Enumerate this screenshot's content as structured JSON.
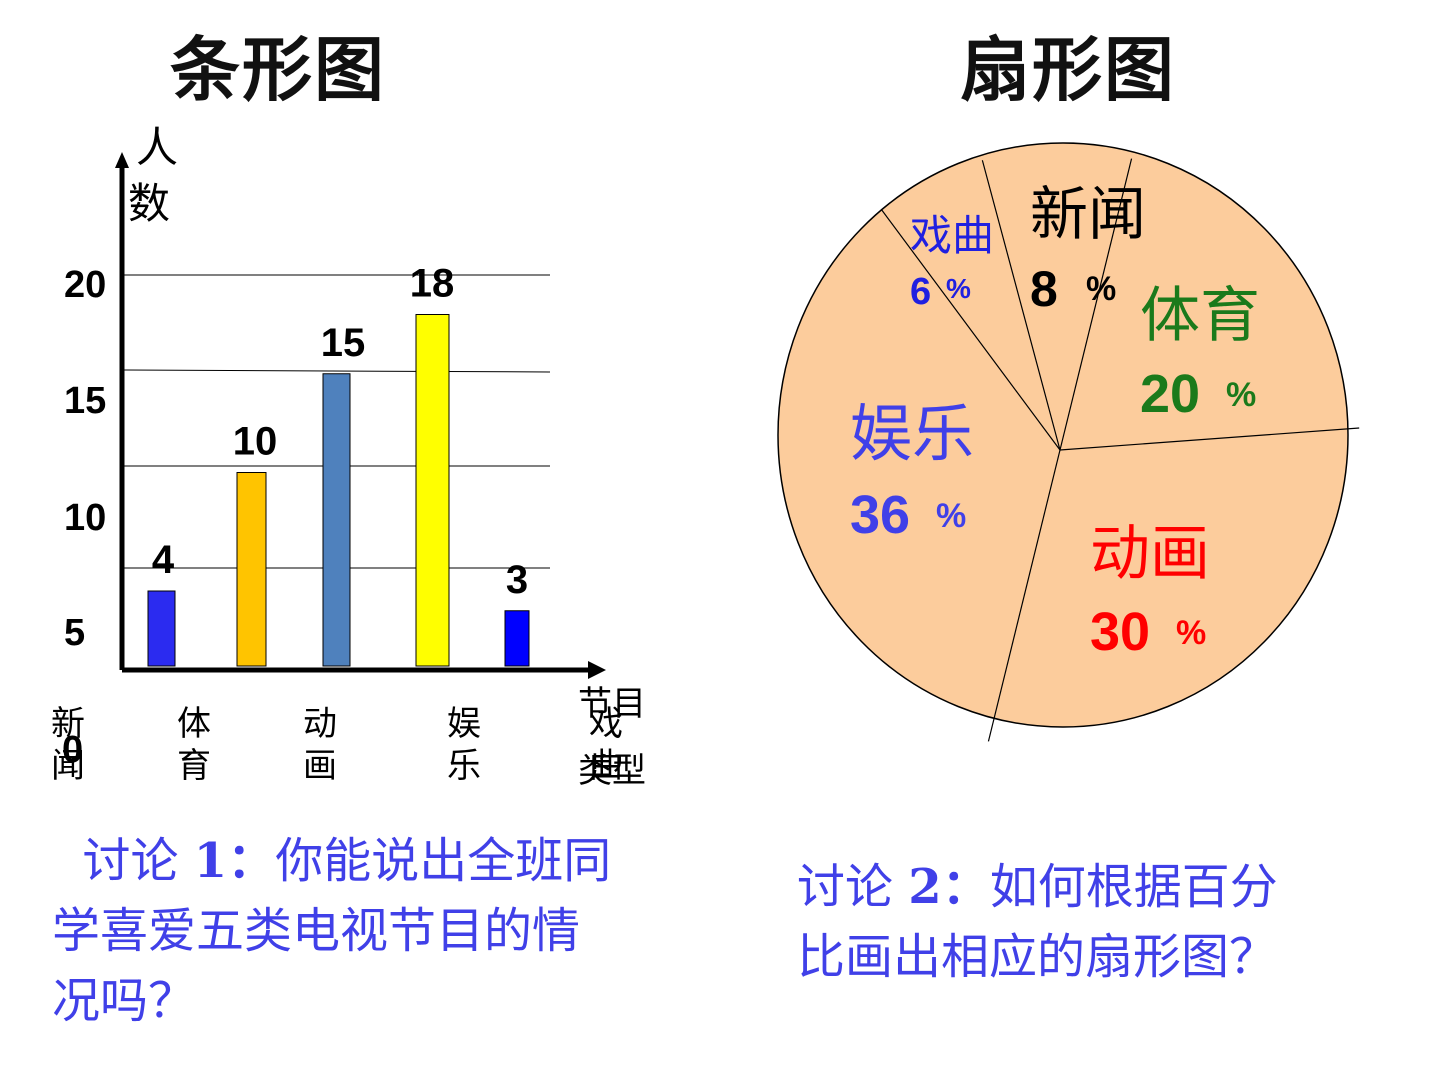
{
  "colors": {
    "text_blue": "#4040e8",
    "axis": "#000000",
    "grid": "#000000",
    "pie_fill": "#fccc9c",
    "pie_stroke": "#000000"
  },
  "titles": {
    "bar": "条形图",
    "pie": "扇形图"
  },
  "chart_data": [
    {
      "type": "bar",
      "title": "条形图",
      "ylabel_chars": [
        "人",
        "数"
      ],
      "xlabel_lines": [
        "节目",
        "类型"
      ],
      "y_tick_labels": [
        "5",
        "10",
        "15",
        "20"
      ],
      "zero_label": "0",
      "ylim": [
        0,
        20
      ],
      "grid": true,
      "categories": [
        "新闻",
        "体育",
        "动画",
        "娱乐",
        "戏曲"
      ],
      "category_chars": [
        [
          "新",
          "闻"
        ],
        [
          "体",
          "育"
        ],
        [
          "动",
          "画"
        ],
        [
          "娱",
          "乐"
        ],
        [
          "戏",
          "曲"
        ]
      ],
      "values": [
        4,
        10,
        15,
        18,
        3
      ],
      "value_labels": [
        "4",
        "10",
        "15",
        "18",
        "3"
      ],
      "bar_colors": [
        "#2b2bf0",
        "#ffc400",
        "#4f81bd",
        "#ffff00",
        "#0000ff"
      ]
    },
    {
      "type": "pie",
      "title": "扇形图",
      "slices": [
        {
          "label": "新闻",
          "value": 8,
          "pct_text": "8",
          "pct_sign": "%",
          "color": "#000000"
        },
        {
          "label": "体育",
          "value": 20,
          "pct_text": "20",
          "pct_sign": "%",
          "color": "#1b7a1b"
        },
        {
          "label": "动画",
          "value": 30,
          "pct_text": "30",
          "pct_sign": "%",
          "color": "#ff0000"
        },
        {
          "label": "娱乐",
          "value": 36,
          "pct_text": "36",
          "pct_sign": "%",
          "color": "#4040e8"
        },
        {
          "label": "戏曲",
          "value": 6,
          "pct_text": "6",
          "pct_sign": "%",
          "color": "#2020e0"
        }
      ]
    }
  ],
  "discussion1": {
    "prefix": "讨论",
    "num": "1",
    "sep": "：",
    "line1": "你能说出全班同",
    "line2": "学喜爱五类电视节目的情",
    "line3": "况吗？"
  },
  "discussion2": {
    "prefix": "讨论",
    "num": "2",
    "sep": "：",
    "line1": "如何根据百分",
    "line2": "比画出相应的扇形图？"
  }
}
